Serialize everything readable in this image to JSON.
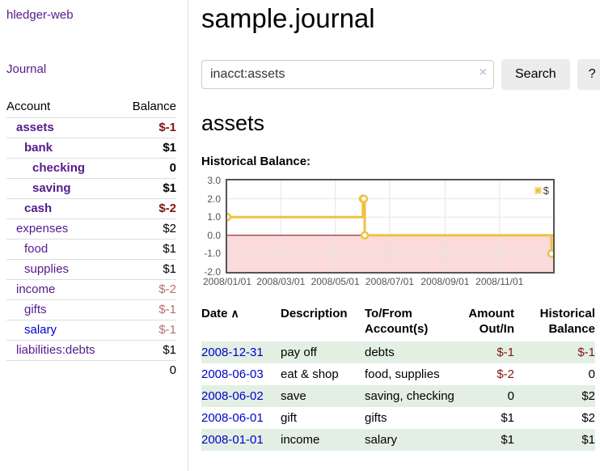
{
  "app": {
    "title": "hledger-web"
  },
  "colors": {
    "link_purple": "#551a8b",
    "link_blue": "#0000cc",
    "negative": "#801515",
    "negative_muted": "#bb6e6e",
    "row_shade_green": "#e3efe3",
    "button_bg": "#ececec"
  },
  "sidebar": {
    "journal_label": "Journal",
    "accounts_table": {
      "headers": [
        "Account",
        "Balance"
      ],
      "rows": [
        {
          "account": "assets",
          "balance": "$-1",
          "indent": 1,
          "bold": true,
          "balance_class": "neg-strong",
          "link_class": ""
        },
        {
          "account": "bank",
          "balance": "$1",
          "indent": 2,
          "bold": true,
          "balance_class": "",
          "link_class": ""
        },
        {
          "account": "checking",
          "balance": "0",
          "indent": 3,
          "bold": true,
          "balance_class": "",
          "link_class": ""
        },
        {
          "account": "saving",
          "balance": "$1",
          "indent": 3,
          "bold": true,
          "balance_class": "",
          "link_class": ""
        },
        {
          "account": "cash",
          "balance": "$-2",
          "indent": 2,
          "bold": true,
          "balance_class": "neg-strong",
          "link_class": ""
        },
        {
          "account": "expenses",
          "balance": "$2",
          "indent": 1,
          "bold": false,
          "balance_class": "",
          "link_class": ""
        },
        {
          "account": "food",
          "balance": "$1",
          "indent": 2,
          "bold": false,
          "balance_class": "",
          "link_class": ""
        },
        {
          "account": "supplies",
          "balance": "$1",
          "indent": 2,
          "bold": false,
          "balance_class": "",
          "link_class": ""
        },
        {
          "account": "income",
          "balance": "$-2",
          "indent": 1,
          "bold": false,
          "balance_class": "neg-muted",
          "link_class": ""
        },
        {
          "account": "gifts",
          "balance": "$-1",
          "indent": 2,
          "bold": false,
          "balance_class": "neg-muted",
          "link_class": ""
        },
        {
          "account": "salary",
          "balance": "$-1",
          "indent": 2,
          "bold": false,
          "balance_class": "neg-muted",
          "link_class": "blue"
        },
        {
          "account": "liabilities:debts",
          "balance": "$1",
          "indent": 1,
          "bold": false,
          "balance_class": "",
          "link_class": ""
        }
      ],
      "total": "0"
    }
  },
  "main": {
    "title": "sample.journal",
    "search": {
      "value": "inacct:assets",
      "clear_icon": "×",
      "button_label": "Search",
      "help_label": "?"
    },
    "account_heading": "assets"
  },
  "chart_data": {
    "type": "line",
    "title": "Historical Balance:",
    "step": true,
    "x_range": [
      "2008-01-01",
      "2008-12-31"
    ],
    "ylim": [
      -2,
      3
    ],
    "y_ticks": [
      3,
      2,
      1,
      0,
      -1,
      -2
    ],
    "x_ticks": [
      "2008/01/01",
      "2008/03/01",
      "2008/05/01",
      "2008/07/01",
      "2008/09/01",
      "2008/11/01"
    ],
    "legend_position": "top-right",
    "series": [
      {
        "name": "$",
        "color": "#edc240",
        "points": [
          [
            "2008-01-01",
            1
          ],
          [
            "2008-06-01",
            2
          ],
          [
            "2008-06-02",
            2
          ],
          [
            "2008-06-03",
            0
          ],
          [
            "2008-12-31",
            -1
          ]
        ]
      }
    ],
    "colors": {
      "line": "#edc240",
      "negative_fill": "#fadada",
      "zero_line": "#8b0000",
      "grid": "#e5e5e5",
      "axis_text": "#545454",
      "border": "#545454"
    }
  },
  "register": {
    "headers": [
      "Date",
      "Description",
      "To/From Account(s)",
      "Amount Out/In",
      "Historical Balance"
    ],
    "sort_icon": "∧",
    "rows": [
      {
        "date": "2008-12-31",
        "description": "pay off",
        "accounts": "debts",
        "amount": "$-1",
        "amount_class": "neg-strong",
        "balance": "$-1",
        "balance_class": "neg-strong",
        "shade": true
      },
      {
        "date": "2008-06-03",
        "description": "eat & shop",
        "accounts": "food, supplies",
        "amount": "$-2",
        "amount_class": "neg-strong",
        "balance": "0",
        "balance_class": "",
        "shade": false
      },
      {
        "date": "2008-06-02",
        "description": "save",
        "accounts": "saving, checking",
        "amount": "0",
        "amount_class": "",
        "balance": "$2",
        "balance_class": "",
        "shade": true
      },
      {
        "date": "2008-06-01",
        "description": "gift",
        "accounts": "gifts",
        "amount": "$1",
        "amount_class": "",
        "balance": "$2",
        "balance_class": "",
        "shade": false
      },
      {
        "date": "2008-01-01",
        "description": "income",
        "accounts": "salary",
        "amount": "$1",
        "amount_class": "",
        "balance": "$1",
        "balance_class": "",
        "shade": true
      }
    ]
  }
}
